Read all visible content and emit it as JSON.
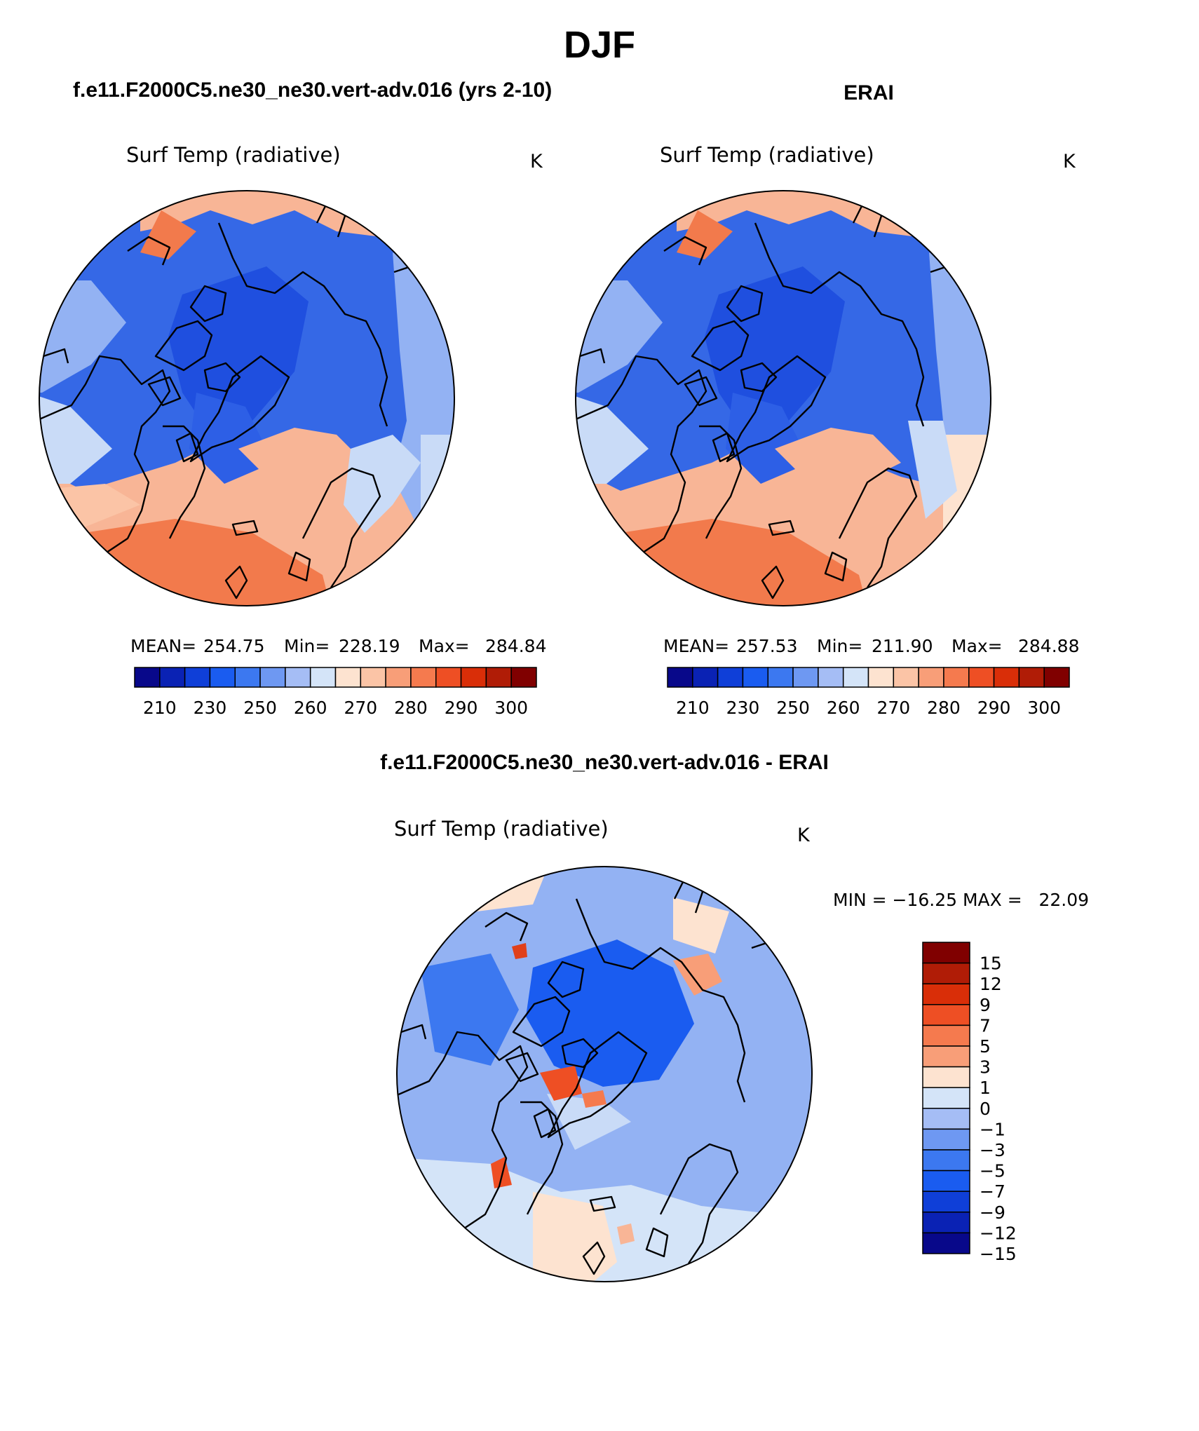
{
  "page_title": "DJF",
  "panels": [
    {
      "title": "f.e11.F2000C5.ne30_ne30.vert-adv.016 (yrs 2-10)",
      "variable": "Surf Temp (radiative)",
      "units": "K",
      "stats": {
        "mean_label": "MEAN=",
        "mean": "254.75",
        "min_label": "Min=",
        "min": "228.19",
        "max_label": "Max=",
        "max": "284.84"
      }
    },
    {
      "title": "ERAI",
      "variable": "Surf Temp (radiative)",
      "units": "K",
      "stats": {
        "mean_label": "MEAN=",
        "mean": "257.53",
        "min_label": "Min=",
        "min": "211.90",
        "max_label": "Max=",
        "max": "284.88"
      }
    },
    {
      "title": "f.e11.F2000C5.ne30_ne30.vert-adv.016 - ERAI",
      "variable": "Surf Temp (radiative)",
      "units": "K",
      "stats_line": "MIN = −16.25 MAX =   22.09"
    }
  ],
  "colorbar_abs": {
    "colors": [
      "#08088a",
      "#0a22b4",
      "#0f3fd8",
      "#1a5cf0",
      "#3c78f0",
      "#6e98f2",
      "#a5bdf5",
      "#d4e4f8",
      "#fde3d0",
      "#fbc4a6",
      "#f89e78",
      "#f57a4e",
      "#ee4f24",
      "#d92e08",
      "#b01c06",
      "#800000"
    ],
    "labels": [
      "210",
      "230",
      "250",
      "260",
      "270",
      "280",
      "290",
      "300"
    ]
  },
  "colorbar_diff": {
    "colors": [
      "#800000",
      "#b01c06",
      "#d92e08",
      "#ee4f24",
      "#f57a4e",
      "#f89e78",
      "#fde3d0",
      "#d4e4f8",
      "#a5bdf5",
      "#6e98f2",
      "#3c78f0",
      "#1a5cf0",
      "#0f3fd8",
      "#0a22b4",
      "#08088a"
    ],
    "labels": [
      "15",
      "12",
      "9",
      "7",
      "5",
      "3",
      "1",
      "0",
      "−1",
      "−3",
      "−5",
      "−7",
      "−9",
      "−12",
      "−15"
    ]
  },
  "palette": {
    "deep_blue": "#1f4fdf",
    "blue": "#3568e6",
    "mid_blue": "#5a86ec",
    "light_blue": "#93b2f3",
    "pale_blue": "#c9dbf7",
    "pale_orange": "#fde3d0",
    "light_orange": "#f8b596",
    "orange": "#f5946c",
    "dark_orange": "#f27a4c",
    "red": "#e0401a",
    "outline": "#000000"
  }
}
